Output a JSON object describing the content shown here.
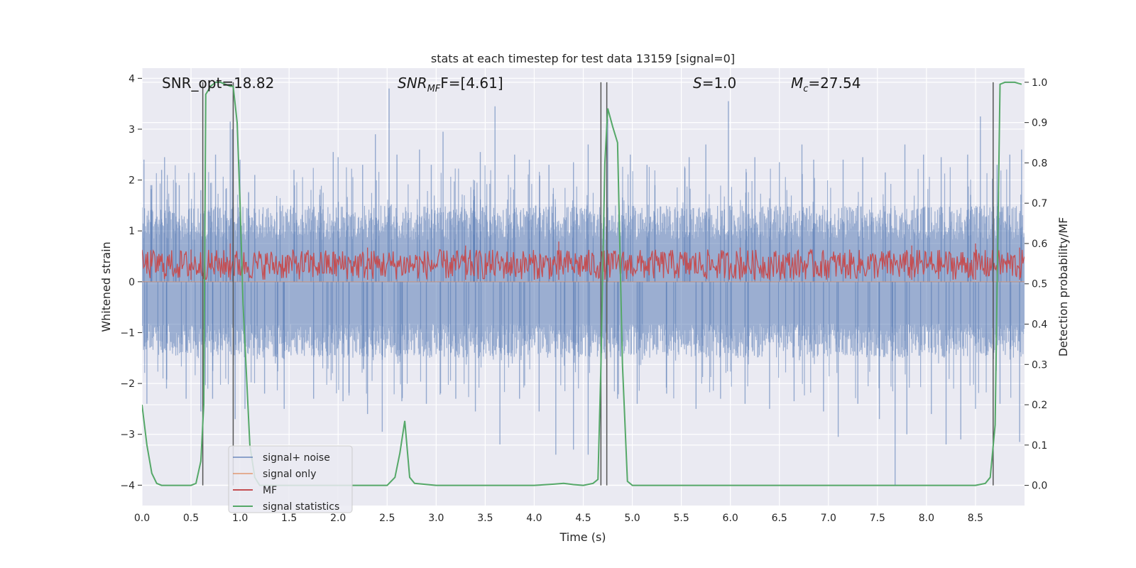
{
  "chart_data": {
    "type": "line",
    "title": "stats at each timestep for test data 13159 [signal=0]",
    "xlabel": "Time (s)",
    "ylabel": "Whitened strain",
    "y2label": "Detection probability/MF",
    "xlim": [
      0,
      9.0
    ],
    "ylim": [
      -4.4,
      4.2
    ],
    "y2lim": [
      -0.05,
      1.035
    ],
    "xticks": [
      0.0,
      0.5,
      1.0,
      1.5,
      2.0,
      2.5,
      3.0,
      3.5,
      4.0,
      4.5,
      5.0,
      5.5,
      6.0,
      6.5,
      7.0,
      7.5,
      8.0,
      8.5
    ],
    "xtick_labels": [
      "0.0",
      "0.5",
      "1.0",
      "1.5",
      "2.0",
      "2.5",
      "3.0",
      "3.5",
      "4.0",
      "4.5",
      "5.0",
      "5.5",
      "6.0",
      "6.5",
      "7.0",
      "7.5",
      "8.0",
      "8.5"
    ],
    "yticks": [
      -4,
      -3,
      -2,
      -1,
      0,
      1,
      2,
      3,
      4
    ],
    "ytick_labels": [
      "−4",
      "−3",
      "−2",
      "−1",
      "0",
      "1",
      "2",
      "3",
      "4"
    ],
    "y2ticks": [
      0.0,
      0.1,
      0.2,
      0.3,
      0.4,
      0.5,
      0.6,
      0.7,
      0.8,
      0.9,
      1.0
    ],
    "y2tick_labels": [
      "0.0",
      "0.1",
      "0.2",
      "0.3",
      "0.4",
      "0.5",
      "0.6",
      "0.7",
      "0.8",
      "0.9",
      "1.0"
    ],
    "grid": true,
    "legend_position": "lower-left",
    "colors": {
      "signal_noise": "#4c72b0",
      "signal_only": "#dd8452",
      "mf": "#c44e52",
      "signal_statistics": "#55a868",
      "vlines": "#555555",
      "background": "#eaeaf2"
    },
    "annotations": {
      "snr_opt": "SNR_opt=18.82",
      "snr_mf_name": "SNR",
      "snr_mf_sub": "MF",
      "snr_mf_value": "F=[4.61]",
      "s_name": "S",
      "s_value": "=1.0",
      "mc_name": "M",
      "mc_sub": "c",
      "mc_value": "=27.54"
    },
    "series": [
      {
        "name": "signal+ noise",
        "axis": "left",
        "envelope_description": "noise band approx ±1.5 with spikes to ±3.5",
        "band": [
          -1.5,
          1.5
        ],
        "upper_spikes": [
          [
            0.02,
            2.4
          ],
          [
            0.1,
            1.9
          ],
          [
            0.2,
            2.2
          ],
          [
            0.23,
            2.45
          ],
          [
            0.38,
            1.9
          ],
          [
            0.6,
            1.8
          ],
          [
            0.75,
            2.5
          ],
          [
            0.9,
            3.15
          ],
          [
            0.92,
            3.0
          ],
          [
            1.0,
            2.4
          ],
          [
            1.15,
            2.1
          ],
          [
            1.55,
            2.2
          ],
          [
            1.95,
            2.55
          ],
          [
            2.0,
            2.45
          ],
          [
            2.25,
            2.3
          ],
          [
            2.38,
            2.9
          ],
          [
            2.52,
            3.8
          ],
          [
            2.6,
            2.5
          ],
          [
            2.83,
            2.6
          ],
          [
            2.95,
            2.3
          ],
          [
            3.07,
            2.95
          ],
          [
            3.45,
            2.55
          ],
          [
            3.6,
            3.45
          ],
          [
            3.8,
            2.5
          ],
          [
            3.95,
            2.4
          ],
          [
            4.15,
            2.3
          ],
          [
            4.4,
            2.35
          ],
          [
            4.55,
            2.7
          ],
          [
            4.75,
            3.2
          ],
          [
            4.98,
            2.5
          ],
          [
            5.15,
            2.3
          ],
          [
            5.58,
            2.45
          ],
          [
            5.75,
            2.7
          ],
          [
            5.98,
            3.55
          ],
          [
            6.25,
            2.45
          ],
          [
            6.5,
            2.35
          ],
          [
            6.73,
            2.7
          ],
          [
            6.85,
            2.4
          ],
          [
            7.15,
            2.4
          ],
          [
            7.35,
            2.45
          ],
          [
            7.58,
            2.15
          ],
          [
            7.78,
            2.7
          ],
          [
            7.97,
            2.5
          ],
          [
            8.15,
            2.45
          ],
          [
            8.42,
            2.5
          ],
          [
            8.55,
            3.25
          ],
          [
            8.72,
            2.3
          ],
          [
            8.85,
            2.5
          ],
          [
            8.97,
            2.6
          ]
        ],
        "lower_spikes": [
          [
            0.05,
            -2.4
          ],
          [
            0.25,
            -2.1
          ],
          [
            0.45,
            -2.3
          ],
          [
            0.6,
            -2.55
          ],
          [
            0.72,
            -2.3
          ],
          [
            0.95,
            -2.7
          ],
          [
            1.05,
            -2.5
          ],
          [
            1.25,
            -2.2
          ],
          [
            1.45,
            -2.5
          ],
          [
            1.75,
            -2.3
          ],
          [
            2.05,
            -2.35
          ],
          [
            2.3,
            -2.6
          ],
          [
            2.45,
            -2.95
          ],
          [
            2.65,
            -2.35
          ],
          [
            2.9,
            -2.4
          ],
          [
            3.2,
            -2.3
          ],
          [
            3.4,
            -2.55
          ],
          [
            3.65,
            -3.2
          ],
          [
            3.85,
            -2.3
          ],
          [
            4.05,
            -2.55
          ],
          [
            4.22,
            -3.4
          ],
          [
            4.4,
            -3.3
          ],
          [
            4.55,
            -3.4
          ],
          [
            4.68,
            -3.1
          ],
          [
            4.85,
            -2.3
          ],
          [
            5.05,
            -2.4
          ],
          [
            5.35,
            -2.2
          ],
          [
            5.65,
            -2.5
          ],
          [
            5.9,
            -2.3
          ],
          [
            6.15,
            -2.4
          ],
          [
            6.4,
            -2.5
          ],
          [
            6.65,
            -2.35
          ],
          [
            6.95,
            -2.55
          ],
          [
            7.1,
            -3.05
          ],
          [
            7.3,
            -2.4
          ],
          [
            7.52,
            -2.7
          ],
          [
            7.68,
            -4.0
          ],
          [
            7.8,
            -3.0
          ],
          [
            8.05,
            -2.6
          ],
          [
            8.2,
            -3.2
          ],
          [
            8.35,
            -3.1
          ],
          [
            8.5,
            -2.5
          ],
          [
            8.75,
            -2.4
          ],
          [
            8.95,
            -3.15
          ]
        ]
      },
      {
        "name": "signal only",
        "axis": "left",
        "x": [
          0,
          9.0
        ],
        "y": [
          0,
          0
        ]
      },
      {
        "name": "MF",
        "axis": "right",
        "band": [
          0.51,
          0.585
        ],
        "upper_spikes": [
          [
            0.5,
            0.585
          ],
          [
            0.9,
            0.6
          ],
          [
            2.3,
            0.59
          ],
          [
            3.3,
            0.595
          ],
          [
            4.25,
            0.605
          ],
          [
            4.7,
            0.595
          ],
          [
            6.1,
            0.59
          ],
          [
            7.85,
            0.595
          ],
          [
            8.5,
            0.6
          ],
          [
            8.95,
            0.59
          ]
        ]
      },
      {
        "name": "signal statistics",
        "axis": "right",
        "x": [
          0.0,
          0.05,
          0.1,
          0.15,
          0.2,
          0.3,
          0.4,
          0.5,
          0.55,
          0.6,
          0.63,
          0.65,
          0.7,
          0.75,
          0.8,
          0.85,
          0.9,
          0.93,
          0.97,
          1.0,
          1.03,
          1.1,
          1.15,
          1.2,
          1.3,
          1.5,
          2.0,
          2.5,
          2.58,
          2.63,
          2.68,
          2.73,
          2.78,
          3.0,
          3.5,
          4.0,
          4.2,
          4.3,
          4.4,
          4.5,
          4.6,
          4.65,
          4.68,
          4.72,
          4.75,
          4.8,
          4.85,
          4.9,
          4.95,
          5.0,
          5.5,
          6.0,
          6.5,
          7.0,
          7.5,
          8.0,
          8.5,
          8.6,
          8.65,
          8.7,
          8.75,
          8.8,
          8.9,
          8.97
        ],
        "y": [
          0.2,
          0.1,
          0.03,
          0.005,
          0.0,
          0.0,
          0.0,
          0.0,
          0.005,
          0.06,
          0.2,
          0.97,
          0.99,
          1.0,
          1.0,
          0.995,
          0.99,
          0.99,
          0.9,
          0.7,
          0.45,
          0.1,
          0.02,
          0.0,
          0.0,
          0.0,
          0.0,
          0.0,
          0.02,
          0.08,
          0.16,
          0.02,
          0.005,
          0.0,
          0.0,
          0.0,
          0.003,
          0.005,
          0.002,
          0.0,
          0.005,
          0.015,
          0.3,
          0.8,
          0.935,
          0.89,
          0.85,
          0.3,
          0.01,
          0.0,
          0.0,
          0.0,
          0.0,
          0.0,
          0.0,
          0.0,
          0.0,
          0.005,
          0.02,
          0.15,
          0.995,
          1.0,
          1.0,
          0.995
        ]
      }
    ],
    "vertical_lines": {
      "x": [
        0.62,
        0.93,
        4.68,
        4.74,
        8.68
      ],
      "ymin": 0.0,
      "ymax": 1.0
    },
    "legend": [
      {
        "key": "signal_noise",
        "label": "signal+ noise"
      },
      {
        "key": "signal_only",
        "label": "signal only"
      },
      {
        "key": "mf",
        "label": "MF"
      },
      {
        "key": "signal_statistics",
        "label": "signal statistics"
      }
    ]
  }
}
